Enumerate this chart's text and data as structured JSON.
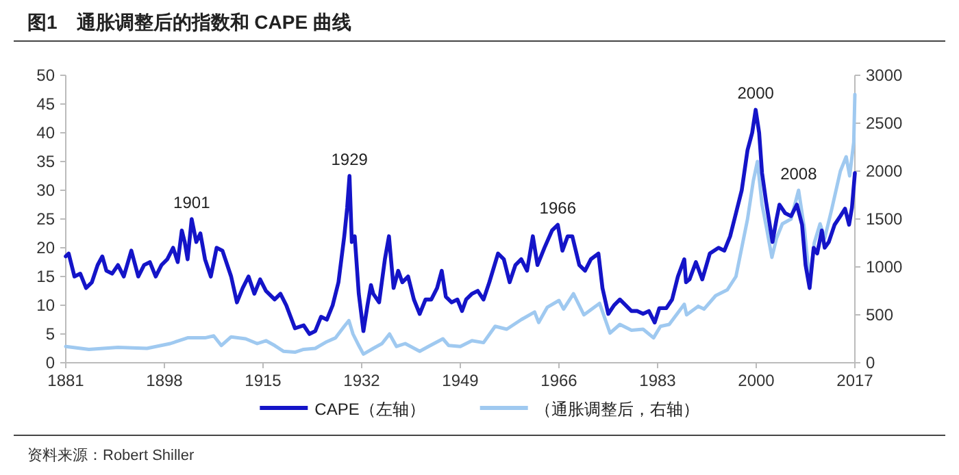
{
  "chart_data": {
    "type": "line",
    "title": "图1　通胀调整后的指数和 CAPE 曲线",
    "xlim": [
      1881,
      2017
    ],
    "xticks": [
      1881,
      1898,
      1915,
      1932,
      1949,
      1966,
      1983,
      2000,
      2017
    ],
    "ylim": [
      0,
      50
    ],
    "yticks": [
      0,
      5,
      10,
      15,
      20,
      25,
      30,
      35,
      40,
      45,
      50
    ],
    "y2lim": [
      0,
      3000
    ],
    "y2ticks": [
      0,
      500,
      1000,
      1500,
      2000,
      2500,
      3000
    ],
    "grid": false,
    "legend": "bottom",
    "marker": "none",
    "line_style": "solid",
    "series": [
      {
        "name": "CAPE（左轴）",
        "color": "#1414c8",
        "x": [
          1881,
          1881.5,
          1882.5,
          1883.5,
          1884.5,
          1885.5,
          1886.5,
          1887.3,
          1888,
          1889,
          1890,
          1891,
          1892.3,
          1893.5,
          1894.5,
          1895.5,
          1896.5,
          1897.5,
          1898.5,
          1899.5,
          1900.3,
          1901,
          1901.5,
          1902,
          1902.7,
          1903.5,
          1904.2,
          1905,
          1906,
          1907,
          1908,
          1909.5,
          1910.5,
          1911.5,
          1912.5,
          1913.5,
          1914.5,
          1915.5,
          1917,
          1918,
          1919,
          1920.5,
          1922,
          1923,
          1924,
          1925,
          1926,
          1927,
          1928,
          1929,
          1929.5,
          1929.9,
          1930.3,
          1930.8,
          1931.5,
          1932.3,
          1933,
          1933.6,
          1934,
          1935,
          1936,
          1936.7,
          1937.5,
          1938.3,
          1939,
          1940,
          1941,
          1942,
          1943,
          1944,
          1945,
          1945.8,
          1946.5,
          1947.5,
          1948.5,
          1949.3,
          1950,
          1951,
          1952,
          1953,
          1954,
          1955.5,
          1956.5,
          1957.5,
          1958.5,
          1959.5,
          1960.5,
          1961.5,
          1962.3,
          1963.5,
          1964.8,
          1965.8,
          1966.6,
          1967.5,
          1968.3,
          1969.5,
          1970.5,
          1971.5,
          1972.8,
          1973.5,
          1974.5,
          1975.5,
          1976.5,
          1977.5,
          1978.5,
          1979.5,
          1980.5,
          1981.5,
          1982.5,
          1983.3,
          1984.5,
          1985.5,
          1986.5,
          1987.6,
          1987.9,
          1988.5,
          1989.6,
          1990.7,
          1992,
          1993.5,
          1994.5,
          1995.5,
          1996.5,
          1997.5,
          1998.5,
          1999.3,
          1999.9,
          2000.5,
          2001,
          2001.7,
          2002.8,
          2003.5,
          2004,
          2005,
          2006,
          2007,
          2007.9,
          2008.5,
          2009.2,
          2009.9,
          2010.5,
          2011.3,
          2011.8,
          2012.5,
          2013.5,
          2014.5,
          2015.3,
          2016,
          2016.5,
          2017
        ],
        "values": [
          18.5,
          19,
          15,
          15.5,
          13,
          14,
          17,
          18.5,
          16,
          15.5,
          17,
          15,
          19.5,
          15,
          17,
          17.5,
          15,
          17,
          18,
          20,
          17.5,
          23,
          21,
          18,
          25,
          21,
          22.5,
          18,
          15,
          20,
          19.5,
          15,
          10.5,
          13,
          15,
          12,
          14.5,
          12.5,
          11,
          12,
          10,
          6,
          6.5,
          5,
          5.5,
          8,
          7.5,
          10,
          14,
          22,
          27,
          32.5,
          21,
          22,
          12,
          5.5,
          10,
          13.5,
          12,
          10.5,
          18,
          22,
          13,
          16,
          14,
          15,
          11,
          8.5,
          11,
          11,
          13,
          16,
          11.5,
          10.5,
          11,
          9,
          11,
          12,
          12.5,
          11,
          14,
          19,
          18,
          14,
          17,
          18,
          16,
          22,
          17,
          20,
          23,
          24,
          19.5,
          22,
          22,
          17,
          16,
          18,
          19,
          13,
          8.5,
          10,
          11,
          10,
          9,
          9,
          8.5,
          9,
          7,
          9.5,
          9.5,
          11,
          15,
          18,
          14,
          14.5,
          17.5,
          14.5,
          19,
          20,
          19.5,
          22,
          26,
          30,
          37,
          40,
          44,
          40,
          33,
          28,
          21,
          25,
          27.5,
          26,
          25.5,
          27.5,
          24,
          17,
          13,
          20,
          19,
          23,
          20,
          21,
          24,
          25.5,
          26.8,
          24,
          27,
          33
        ]
      },
      {
        "name": "（通胀调整后，右轴）",
        "color": "#9fc9f0",
        "axis": "y2",
        "x": [
          1881,
          1885,
          1890,
          1895,
          1899,
          1902,
          1905,
          1906.5,
          1907.8,
          1909.5,
          1912,
          1914,
          1915.5,
          1917,
          1918.5,
          1920.5,
          1922,
          1924,
          1926,
          1927.5,
          1929,
          1929.8,
          1930.5,
          1931.5,
          1932.3,
          1934,
          1935.5,
          1936.8,
          1938,
          1939.5,
          1942,
          1943.5,
          1946,
          1947,
          1949,
          1951,
          1953,
          1955,
          1957,
          1959.5,
          1961.8,
          1962.5,
          1964,
          1966,
          1966.8,
          1968.5,
          1970.3,
          1973,
          1974.8,
          1976.5,
          1978.5,
          1980.5,
          1982.3,
          1983.5,
          1985,
          1987.6,
          1988,
          1990,
          1991,
          1993,
          1995,
          1996.5,
          1997.5,
          1998.5,
          1999.5,
          2000.2,
          2001,
          2001.8,
          2002.7,
          2003.5,
          2004.5,
          2006,
          2007.3,
          2008.3,
          2009.2,
          2010,
          2011,
          2011.8,
          2013,
          2014.5,
          2015.5,
          2016.1,
          2016.8,
          2017
        ],
        "values": [
          170,
          140,
          160,
          150,
          200,
          260,
          260,
          280,
          180,
          270,
          250,
          200,
          230,
          180,
          120,
          110,
          140,
          150,
          220,
          260,
          380,
          440,
          300,
          180,
          90,
          150,
          200,
          300,
          170,
          200,
          120,
          170,
          250,
          180,
          170,
          230,
          210,
          380,
          350,
          450,
          530,
          420,
          580,
          650,
          560,
          720,
          500,
          620,
          310,
          400,
          340,
          350,
          260,
          380,
          400,
          610,
          500,
          590,
          560,
          700,
          760,
          900,
          1200,
          1500,
          1900,
          2100,
          1650,
          1400,
          1100,
          1300,
          1450,
          1500,
          1800,
          1400,
          850,
          1250,
          1450,
          1300,
          1600,
          2000,
          2150,
          1950,
          2300,
          2800
        ]
      }
    ],
    "annotations": [
      {
        "text": "1901",
        "x": 1902.7,
        "y": 25
      },
      {
        "text": "1929",
        "x": 1929.9,
        "y": 32.5
      },
      {
        "text": "1966",
        "x": 1965.8,
        "y": 24
      },
      {
        "text": "2000",
        "x": 1999.9,
        "y": 44
      },
      {
        "text": "2008",
        "x": 2007.3,
        "y": 30
      },
      "资料来源：Robert Shiller"
    ]
  }
}
